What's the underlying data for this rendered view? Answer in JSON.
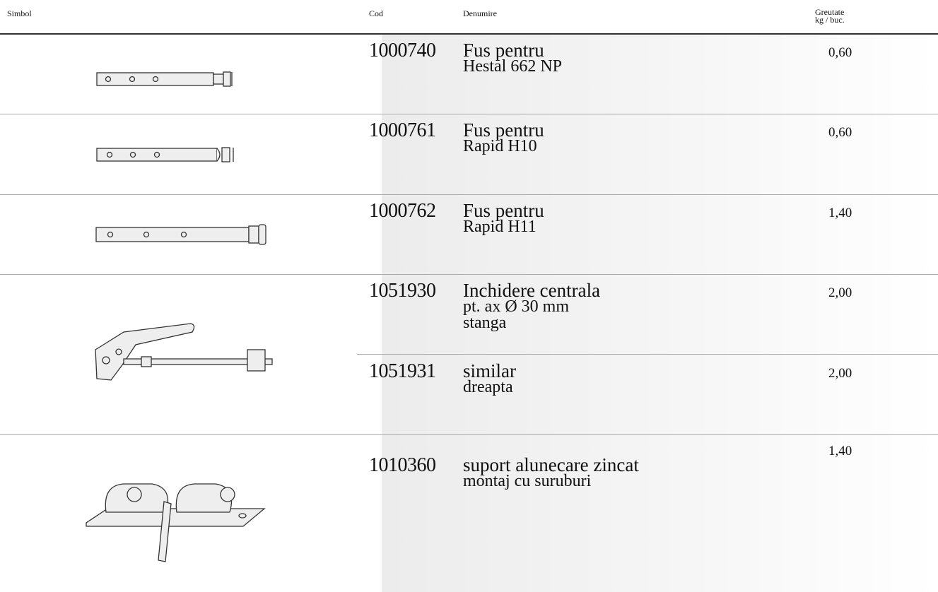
{
  "header": {
    "symbol": "Simbol",
    "code": "Cod",
    "name": "Denumire",
    "weight": "Greutate",
    "weight_unit": "kg / buc."
  },
  "rows": [
    {
      "code": "1000740",
      "title": "Fus pentru",
      "details": [
        "Hestal 662 NP"
      ],
      "weight": "0,60"
    },
    {
      "code": "1000761",
      "title": "Fus pentru",
      "details": [
        "Rapid H10"
      ],
      "weight": "0,60"
    },
    {
      "code": "1000762",
      "title": "Fus pentru",
      "details": [
        "Rapid H11"
      ],
      "weight": "1,40"
    },
    {
      "code": "1051930",
      "title": "Inchidere centrala",
      "details": [
        "pt. ax Ø 30 mm",
        "stanga"
      ],
      "weight": "2,00"
    },
    {
      "code": "1051931",
      "title": "similar",
      "details": [
        "dreapta"
      ],
      "weight": "2,00"
    },
    {
      "code": "1010360",
      "title": "suport alunecare zincat",
      "details": [
        "montaj cu suruburi"
      ],
      "weight": "1,40"
    }
  ]
}
